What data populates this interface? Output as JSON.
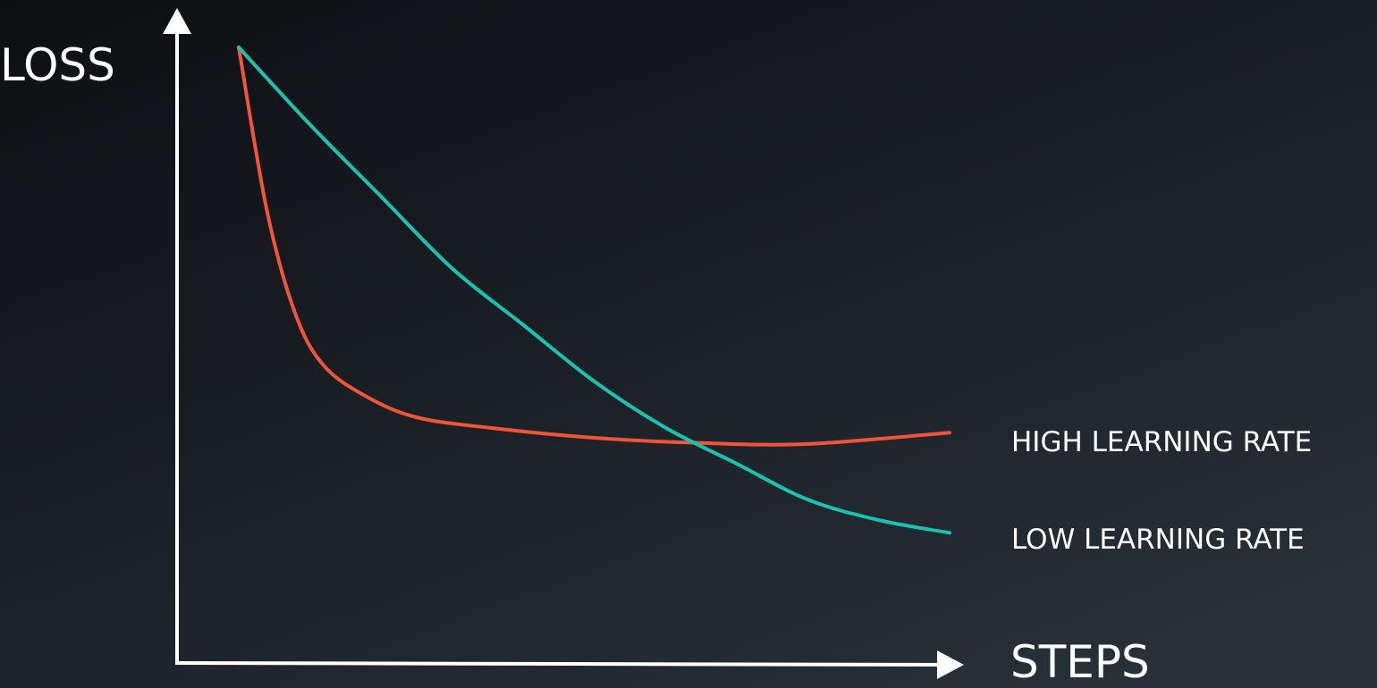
{
  "chart_data": {
    "type": "line",
    "title": "",
    "xlabel": "STEPS",
    "ylabel": "LOSS",
    "grid": false,
    "legend_placement": "right",
    "xlim": [
      0,
      100
    ],
    "ylim": [
      0,
      100
    ],
    "series": [
      {
        "name": "HIGH LEARNING RATE",
        "color": "#f0553c",
        "x": [
          0,
          4,
          8,
          12,
          18,
          25,
          35,
          50,
          65,
          80,
          100
        ],
        "y": [
          100,
          68,
          48,
          38,
          32,
          28,
          26,
          24,
          23,
          22.8,
          25
        ]
      },
      {
        "name": "LOW LEARNING RATE",
        "color": "#19c3b0",
        "x": [
          0,
          10,
          20,
          30,
          40,
          50,
          60,
          70,
          80,
          90,
          100
        ],
        "y": [
          100,
          85,
          71,
          57,
          46,
          35,
          26,
          19,
          12,
          8,
          5.5
        ]
      }
    ]
  }
}
